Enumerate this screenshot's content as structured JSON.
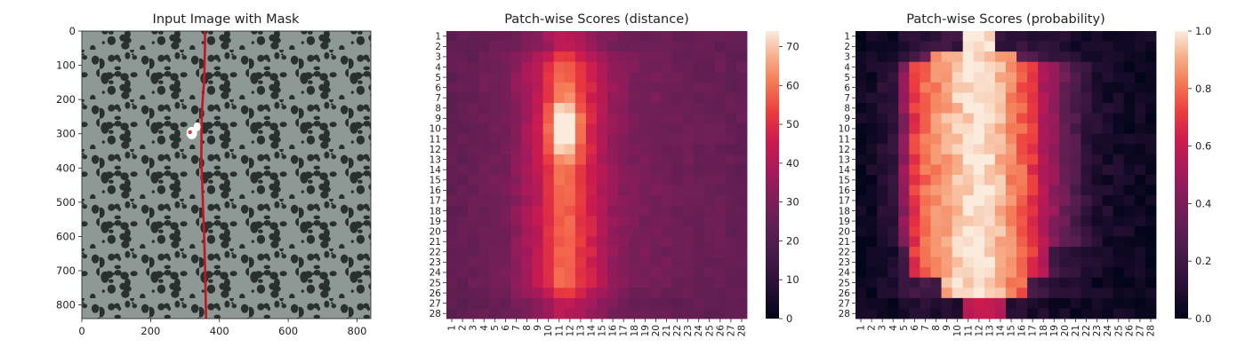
{
  "panels": [
    {
      "title": "Input Image with Mask"
    },
    {
      "title": "Patch-wise Scores (distance)"
    },
    {
      "title": "Patch-wise Scores (probability)"
    }
  ],
  "chart_data": [
    {
      "type": "image",
      "title": "Input Image with Mask",
      "xlim": [
        0,
        840
      ],
      "ylim": [
        840,
        0
      ],
      "x_ticks": [
        "0",
        "200",
        "400",
        "600",
        "800"
      ],
      "y_ticks": [
        "0",
        "100",
        "200",
        "300",
        "400",
        "500",
        "600",
        "700",
        "800"
      ],
      "mask_color": "#c8141e",
      "blob_color": "#ffffff",
      "mask_path_x": [
        358,
        358,
        357,
        356,
        352,
        349,
        348,
        348,
        347,
        350,
        352,
        355,
        357,
        359,
        360,
        361
      ],
      "mask_path_y": [
        0,
        40,
        90,
        140,
        190,
        240,
        285,
        320,
        380,
        440,
        510,
        580,
        650,
        720,
        780,
        840
      ],
      "blob_center": [
        325,
        290
      ]
    },
    {
      "type": "heatmap",
      "title": "Patch-wise Scores (distance)",
      "n": 28,
      "tick_labels": [
        "1",
        "2",
        "3",
        "4",
        "5",
        "6",
        "7",
        "8",
        "9",
        "10",
        "11",
        "12",
        "13",
        "14",
        "15",
        "16",
        "17",
        "18",
        "19",
        "20",
        "21",
        "22",
        "23",
        "24",
        "25",
        "26",
        "27",
        "28"
      ],
      "colormap": "rocket",
      "colorbar": {
        "min": 0,
        "max": 74,
        "ticks": [
          0,
          10,
          20,
          30,
          40,
          50,
          60,
          70
        ]
      },
      "column_profile": [
        24,
        25,
        26,
        27,
        28,
        29,
        33,
        38,
        43,
        50,
        58,
        58,
        52,
        47,
        40,
        35,
        32,
        30,
        29,
        29,
        28,
        27,
        27,
        26,
        26,
        26,
        25,
        25
      ],
      "peak_value": 74,
      "peak_rows": [
        9,
        11
      ],
      "peak_columns": [
        11,
        12
      ],
      "border_value": 22
    },
    {
      "type": "heatmap",
      "title": "Patch-wise Scores (probability)",
      "n": 28,
      "tick_labels": [
        "1",
        "2",
        "3",
        "4",
        "5",
        "6",
        "7",
        "8",
        "9",
        "10",
        "11",
        "12",
        "13",
        "14",
        "15",
        "16",
        "17",
        "18",
        "19",
        "20",
        "21",
        "22",
        "23",
        "24",
        "25",
        "26",
        "27",
        "28"
      ],
      "colormap": "rocket",
      "colorbar": {
        "min": 0.0,
        "max": 1.0,
        "ticks": [
          "0.0",
          "0.2",
          "0.4",
          "0.6",
          "0.8",
          "1.0"
        ]
      },
      "column_profile": [
        0.03,
        0.05,
        0.1,
        0.15,
        0.45,
        0.7,
        0.8,
        0.85,
        0.9,
        0.95,
        0.98,
        1.0,
        0.97,
        0.92,
        0.85,
        0.78,
        0.7,
        0.55,
        0.45,
        0.35,
        0.25,
        0.15,
        0.1,
        0.07,
        0.06,
        0.04,
        0.03,
        0.03
      ],
      "core_value": 1.0,
      "background_value": 0.03
    }
  ]
}
